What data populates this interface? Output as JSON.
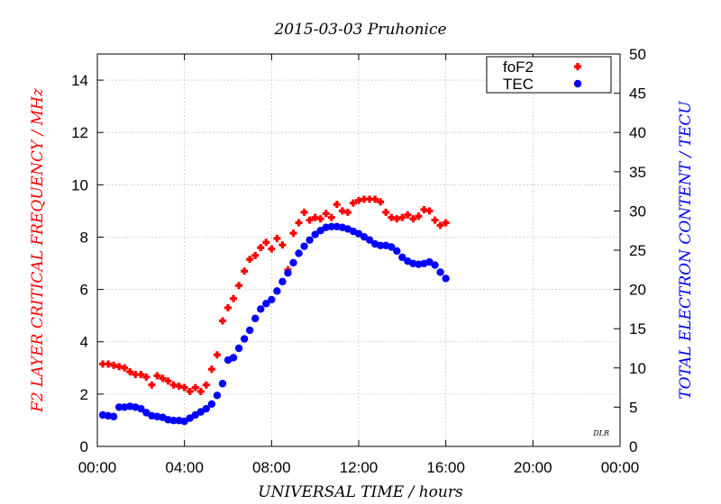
{
  "chart_data": {
    "type": "scatter",
    "title": "2015-03-03 Pruhonice",
    "xlabel": "UNIVERSAL TIME / hours",
    "ylabel_left": "F2 LAYER CRITICAL FREQUENCY / MHz",
    "ylabel_right": "TOTAL ELECTRON CONTENT / TECU",
    "credit": "DLR",
    "xlim": [
      0,
      24
    ],
    "ylim_left": [
      0,
      15
    ],
    "ylim_right": [
      0,
      50
    ],
    "x_ticks": [
      0,
      4,
      8,
      12,
      16,
      20,
      24
    ],
    "x_tick_labels": [
      "00:00",
      "04:00",
      "08:00",
      "12:00",
      "16:00",
      "20:00",
      "00:00"
    ],
    "y_left_ticks": [
      0,
      2,
      4,
      6,
      8,
      10,
      12,
      14
    ],
    "y_left_tick_labels": [
      "0",
      "2",
      "4",
      "6",
      "8",
      "10",
      "12",
      "14"
    ],
    "y_right_ticks": [
      0,
      5,
      10,
      15,
      20,
      25,
      30,
      35,
      40,
      45,
      50
    ],
    "y_right_tick_labels": [
      "0",
      "5",
      "10",
      "15",
      "20",
      "25",
      "30",
      "35",
      "40",
      "45",
      "50"
    ],
    "grid": true,
    "legend_position": "top-right",
    "colors": {
      "foF2": "#ff0000",
      "TEC": "#0000ff"
    },
    "series": [
      {
        "name": "foF2",
        "axis": "left",
        "marker": "plus",
        "x": [
          0.25,
          0.5,
          0.75,
          1.0,
          1.25,
          1.5,
          1.75,
          2.0,
          2.25,
          2.5,
          2.75,
          3.0,
          3.25,
          3.5,
          3.75,
          4.0,
          4.25,
          4.5,
          4.75,
          5.0,
          5.25,
          5.5,
          5.75,
          6.0,
          6.25,
          6.5,
          6.75,
          7.0,
          7.25,
          7.5,
          7.75,
          8.0,
          8.25,
          8.5,
          8.75,
          9.0,
          9.25,
          9.5,
          9.75,
          10.0,
          10.25,
          10.5,
          10.75,
          11.0,
          11.25,
          11.5,
          11.75,
          12.0,
          12.25,
          12.5,
          12.75,
          13.0,
          13.25,
          13.5,
          13.75,
          14.0,
          14.25,
          14.5,
          14.75,
          15.0,
          15.25,
          15.5,
          15.75,
          16.0
        ],
        "y": [
          3.15,
          3.15,
          3.1,
          3.05,
          3.0,
          2.85,
          2.75,
          2.75,
          2.65,
          2.35,
          2.7,
          2.6,
          2.5,
          2.35,
          2.3,
          2.25,
          2.1,
          2.25,
          2.1,
          2.35,
          2.95,
          3.5,
          4.8,
          5.3,
          5.65,
          6.15,
          6.7,
          7.15,
          7.3,
          7.6,
          7.8,
          7.55,
          7.95,
          7.7,
          6.75,
          8.15,
          8.55,
          8.95,
          8.65,
          8.75,
          8.7,
          8.9,
          8.75,
          9.25,
          9.0,
          8.95,
          9.3,
          9.4,
          9.45,
          9.45,
          9.45,
          9.35,
          8.95,
          8.75,
          8.7,
          8.75,
          8.85,
          8.7,
          8.8,
          9.05,
          9.0,
          8.65,
          8.45,
          8.55
        ]
      },
      {
        "name": "TEC",
        "axis": "right",
        "marker": "dot",
        "x": [
          0.25,
          0.5,
          0.75,
          1.0,
          1.25,
          1.5,
          1.75,
          2.0,
          2.25,
          2.5,
          2.75,
          3.0,
          3.25,
          3.5,
          3.75,
          4.0,
          4.25,
          4.5,
          4.75,
          5.0,
          5.25,
          5.5,
          5.75,
          6.0,
          6.25,
          6.5,
          6.75,
          7.0,
          7.25,
          7.5,
          7.75,
          8.0,
          8.25,
          8.5,
          8.75,
          9.0,
          9.25,
          9.5,
          9.75,
          10.0,
          10.25,
          10.5,
          10.75,
          11.0,
          11.25,
          11.5,
          11.75,
          12.0,
          12.25,
          12.5,
          12.75,
          13.0,
          13.25,
          13.5,
          13.75,
          14.0,
          14.25,
          14.5,
          14.75,
          15.0,
          15.25,
          15.5,
          15.75,
          16.0
        ],
        "y": [
          4.0,
          3.9,
          3.8,
          5.0,
          5.0,
          5.1,
          5.0,
          4.8,
          4.3,
          3.9,
          3.8,
          3.7,
          3.4,
          3.3,
          3.3,
          3.2,
          3.6,
          4.0,
          4.4,
          4.8,
          5.4,
          6.5,
          8.0,
          11.0,
          11.3,
          12.5,
          13.7,
          14.8,
          16.3,
          17.5,
          18.2,
          18.7,
          19.8,
          21.0,
          22.1,
          23.4,
          24.6,
          25.5,
          26.3,
          27.0,
          27.5,
          27.9,
          28.0,
          28.0,
          27.9,
          27.7,
          27.4,
          27.1,
          26.7,
          26.3,
          25.8,
          25.6,
          25.6,
          25.4,
          24.9,
          24.1,
          23.6,
          23.3,
          23.2,
          23.3,
          23.5,
          23.1,
          22.2,
          21.4
        ]
      }
    ]
  }
}
